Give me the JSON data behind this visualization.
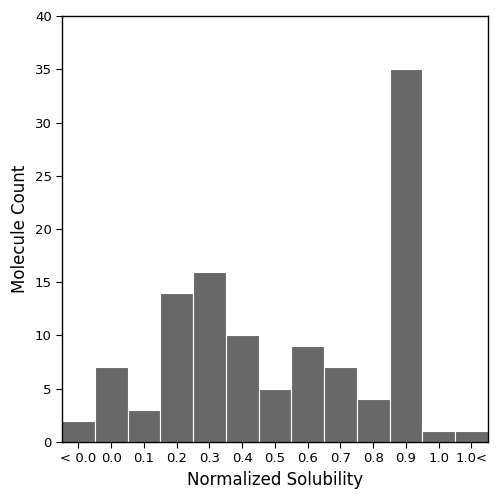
{
  "categories": [
    "< 0.0",
    "0.0",
    "0.1",
    "0.2",
    "0.3",
    "0.4",
    "0.5",
    "0.6",
    "0.7",
    "0.8",
    "0.9",
    "1.0",
    "1.0<"
  ],
  "values": [
    2,
    7,
    3,
    14,
    16,
    10,
    5,
    9,
    7,
    4,
    35,
    1,
    1
  ],
  "bar_color": "#686868",
  "edge_color": "#ffffff",
  "xlabel": "Normalized Solubility",
  "ylabel": "Molecule Count",
  "ylim": [
    0,
    40
  ],
  "yticks": [
    0,
    5,
    10,
    15,
    20,
    25,
    30,
    35,
    40
  ],
  "background_color": "#ffffff",
  "figure_facecolor": "#ffffff",
  "bar_edge_width": 0.8,
  "xlabel_fontsize": 12,
  "ylabel_fontsize": 12,
  "tick_fontsize": 9.5
}
